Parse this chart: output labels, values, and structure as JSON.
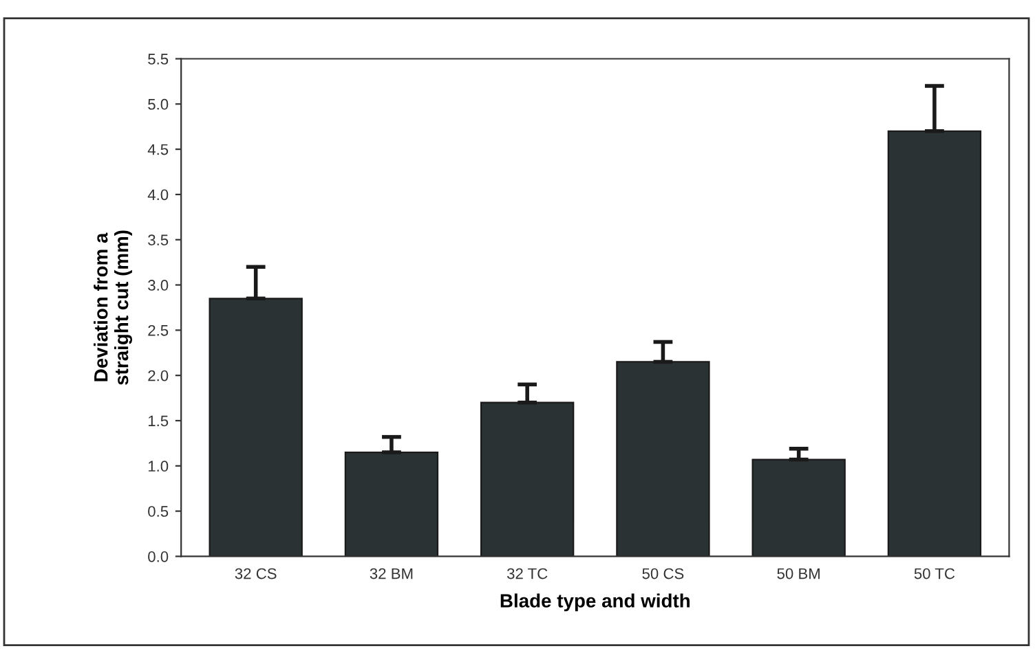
{
  "chart_data": {
    "type": "bar",
    "xlabel": "Blade type and width",
    "ylabel": "Deviation from a\nstraight cut (mm)",
    "categories": [
      "32 CS",
      "32 BM",
      "32 TC",
      "50 CS",
      "50 BM",
      "50 TC"
    ],
    "values": [
      2.85,
      1.15,
      1.7,
      2.15,
      1.07,
      4.7
    ],
    "errors": [
      [
        2.85,
        3.2
      ],
      [
        1.15,
        1.32
      ],
      [
        1.7,
        1.9
      ],
      [
        2.15,
        2.37
      ],
      [
        1.07,
        1.19
      ],
      [
        4.7,
        5.2
      ]
    ],
    "color": "#2b3234",
    "ylim": [
      0,
      5.5
    ],
    "yticks": [
      {
        "value": 0,
        "label": "0.0"
      },
      {
        "value": 0.5,
        "label": "0.5"
      },
      {
        "value": 1,
        "label": "1.0"
      },
      {
        "value": 1.5,
        "label": "1.5"
      },
      {
        "value": 2,
        "label": "2.0"
      },
      {
        "value": 2.5,
        "label": "2.5"
      },
      {
        "value": 3,
        "label": "3.0"
      },
      {
        "value": 3.5,
        "label": "3.5"
      },
      {
        "value": 4,
        "label": "4.0"
      },
      {
        "value": 4.5,
        "label": "4.5"
      },
      {
        "value": 5,
        "label": "5.0"
      },
      {
        "value": 5.5,
        "label": "5.5"
      }
    ],
    "grid": false,
    "legend": false
  }
}
